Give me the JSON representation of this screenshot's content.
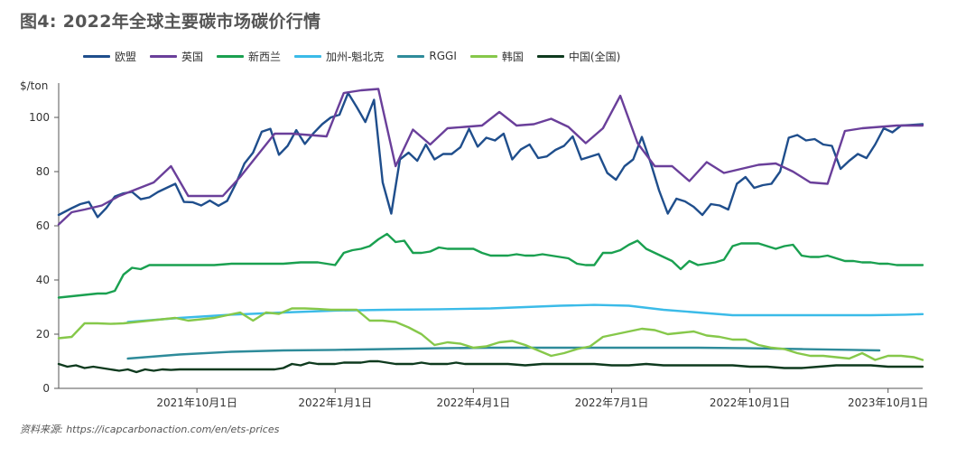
{
  "title": "图4: 2022年全球主要碳市场碳价行情",
  "source": "资料来源: https://icapcarbonaction.com/en/ets-prices",
  "chart_data": {
    "type": "line",
    "title": "图4: 2022年全球主要碳市场碳价行情",
    "ylabel": "$/ton",
    "xlabel": "",
    "ylim": [
      0,
      110
    ],
    "yticks": [
      0,
      20,
      40,
      60,
      80,
      100
    ],
    "xlim": [
      0,
      100
    ],
    "xticks": [
      {
        "pos": 16,
        "label": "2021年10月1日"
      },
      {
        "pos": 32,
        "label": "2022年1月1日"
      },
      {
        "pos": 48,
        "label": "2022年4月1日"
      },
      {
        "pos": 64,
        "label": "2022年7月1日"
      },
      {
        "pos": 80,
        "label": "2022年10月1日"
      },
      {
        "pos": 96,
        "label": "2023年10月1日"
      }
    ],
    "series": [
      {
        "name": "欧盟",
        "color": "#1f4e8c",
        "x": [
          0,
          1.5,
          2.5,
          3.5,
          4.5,
          5.5,
          6.5,
          7.5,
          8.5,
          9.5,
          10.5,
          11.5,
          12.5,
          13.5,
          14.5,
          15.5,
          16.5,
          17.5,
          18.5,
          19.5,
          20.5,
          21.5,
          22.5,
          23.5,
          24.5,
          25.5,
          26.5,
          27.5,
          28.5,
          29.5,
          30.5,
          31.5,
          32.5,
          33.5,
          34.5,
          35.5,
          36.5,
          37.5,
          38.5,
          39.5,
          40.5,
          41.5,
          42.5,
          43.5,
          44.5,
          45.5,
          46.5,
          47.5,
          48.5,
          49.5,
          50.5,
          51.5,
          52.5,
          53.5,
          54.5,
          55.5,
          56.5,
          57.5,
          58.5,
          59.5,
          60.5,
          61.5,
          62.5,
          63.5,
          64.5,
          65.5,
          66.5,
          67.5,
          68.5,
          69.5,
          70.5,
          71.5,
          72.5,
          73.5,
          74.5,
          75.5,
          76.5,
          77.5,
          78.5,
          79.5,
          80.5,
          81.5,
          82.5,
          83.5,
          84.5,
          85.5,
          86.5,
          87.5,
          88.5,
          89.5,
          90.5,
          91.5,
          92.5,
          93.5,
          94.5,
          95.5,
          96.5,
          97.5,
          98.5,
          99.5,
          100
        ],
        "values": [
          64.0,
          66.5,
          68.0,
          68.8,
          63.2,
          66.5,
          70.8,
          72.0,
          72.5,
          69.8,
          70.5,
          72.5,
          74.0,
          75.5,
          68.8,
          68.7,
          67.5,
          69.3,
          67.4,
          69.2,
          75.5,
          83.0,
          87.0,
          94.7,
          95.8,
          86.2,
          89.5,
          95.3,
          90.2,
          94.2,
          97.5,
          100.0,
          101.0,
          109.0,
          103.8,
          98.3,
          106.5,
          76.0,
          64.5,
          84.5,
          87.0,
          84.0,
          90.0,
          84.5,
          86.5,
          86.5,
          89.0,
          95.8,
          89.2,
          92.5,
          91.5,
          94.0,
          84.5,
          88.2,
          90.0,
          85.0,
          85.6,
          88.0,
          89.5,
          93.0,
          84.5,
          85.5,
          86.5,
          79.5,
          77.0,
          82.0,
          84.5,
          92.8,
          83.5,
          73.0,
          64.5,
          70.0,
          69.0,
          67.0,
          64.0,
          68.0,
          67.5,
          66.0,
          75.5,
          78.0,
          74.0,
          75.0,
          75.5,
          80.0,
          92.5,
          93.5,
          91.5,
          92.0,
          90.0,
          89.5,
          81.0,
          84.0,
          86.5,
          85.0,
          90.0,
          96.0,
          94.5,
          97.0,
          97.2,
          97.4,
          97.5
        ]
      },
      {
        "name": "英国",
        "color": "#6a3f9a",
        "x": [
          0,
          1.5,
          3,
          5,
          7,
          9,
          11,
          13,
          15,
          17,
          19,
          21,
          23,
          25,
          27,
          29,
          31,
          33,
          35,
          37,
          39,
          41,
          43,
          45,
          47,
          49,
          51,
          53,
          55,
          57,
          59,
          61,
          63,
          65,
          67,
          69,
          71,
          73,
          75,
          77,
          79,
          81,
          83,
          85,
          87,
          89,
          91,
          93,
          95,
          97,
          99,
          100
        ],
        "values": [
          60.5,
          65.0,
          66.0,
          67.5,
          71.0,
          73.5,
          76.0,
          82.0,
          71.0,
          71.0,
          71.0,
          78.0,
          86.0,
          94.0,
          94.0,
          93.5,
          93.0,
          109.0,
          110.0,
          110.5,
          82.0,
          95.5,
          90.0,
          96.0,
          96.5,
          97.0,
          102.0,
          97.0,
          97.5,
          99.5,
          96.5,
          90.5,
          96.0,
          108.0,
          90.5,
          82.0,
          82.0,
          76.5,
          83.5,
          79.5,
          81.0,
          82.5,
          83.0,
          80.0,
          76.0,
          75.5,
          95.0,
          96.0,
          96.5,
          97.0,
          97.0,
          97.0
        ]
      },
      {
        "name": "新西兰",
        "color": "#1aa050",
        "x": [
          0,
          1.5,
          3,
          4.5,
          5.5,
          6.5,
          7.5,
          8.5,
          9.5,
          10.5,
          11.5,
          12.5,
          14,
          16,
          18,
          20,
          22,
          24,
          26,
          28,
          30,
          31,
          32,
          33,
          34,
          35,
          36,
          37,
          38,
          39,
          40,
          41,
          42,
          43,
          44,
          45,
          46,
          47,
          48,
          49,
          50,
          51,
          52,
          53,
          54,
          55,
          56,
          57,
          58,
          59,
          60,
          61,
          62,
          63,
          64,
          65,
          66,
          67,
          68,
          69,
          70,
          71,
          72,
          73,
          74,
          75,
          76,
          77,
          78,
          79,
          80,
          81,
          82,
          83,
          84,
          85,
          86,
          87,
          88,
          89,
          90,
          91,
          92,
          93,
          94,
          95,
          96,
          97,
          98,
          99,
          100
        ],
        "values": [
          33.5,
          34.0,
          34.5,
          35.0,
          35.0,
          36.0,
          42.0,
          44.5,
          44.0,
          45.5,
          45.5,
          45.5,
          45.5,
          45.5,
          45.5,
          46.0,
          46.0,
          46.0,
          46.0,
          46.5,
          46.5,
          46.0,
          45.5,
          50.0,
          51.0,
          51.5,
          52.5,
          55.0,
          57.0,
          54.0,
          54.5,
          50.0,
          50.0,
          50.5,
          52.0,
          51.5,
          51.5,
          51.5,
          51.5,
          50.0,
          49.0,
          49.0,
          49.0,
          49.5,
          49.0,
          49.0,
          49.5,
          49.0,
          48.5,
          48.0,
          46.0,
          45.5,
          45.5,
          50.0,
          50.0,
          51.0,
          53.0,
          54.5,
          51.5,
          50.0,
          48.5,
          47.0,
          44.0,
          47.0,
          45.5,
          46.0,
          46.5,
          47.5,
          52.5,
          53.5,
          53.5,
          53.5,
          52.5,
          51.5,
          52.5,
          53.0,
          49.0,
          48.5,
          48.5,
          49.0,
          48.0,
          47.0,
          47.0,
          46.5,
          46.5,
          46.0,
          46.0,
          45.5,
          45.5,
          45.5,
          45.5
        ]
      },
      {
        "name": "加州-魁北克",
        "color": "#3bbbe8",
        "x": [
          8,
          14,
          20,
          26,
          32,
          38,
          44,
          50,
          54,
          58,
          62,
          66,
          70,
          74,
          78,
          82,
          86,
          90,
          94,
          98,
          100
        ],
        "values": [
          24.5,
          26.0,
          27.2,
          28.0,
          28.7,
          29.0,
          29.2,
          29.5,
          30.0,
          30.5,
          30.8,
          30.5,
          29.0,
          28.0,
          27.0,
          27.0,
          27.0,
          27.0,
          27.0,
          27.2,
          27.4
        ]
      },
      {
        "name": "RGGI",
        "color": "#2e8b9a",
        "x": [
          8,
          14,
          20,
          26,
          32,
          38,
          44,
          50,
          56,
          62,
          68,
          74,
          80,
          86,
          92,
          95
        ],
        "values": [
          11.0,
          12.5,
          13.5,
          14.0,
          14.2,
          14.5,
          14.8,
          15.0,
          15.0,
          15.0,
          15.0,
          15.0,
          14.8,
          14.5,
          14.2,
          14.0
        ]
      },
      {
        "name": "韩国",
        "color": "#86c84a",
        "x": [
          0,
          1.5,
          3,
          4.5,
          6,
          7.5,
          9,
          10.5,
          12,
          13.5,
          15,
          16.5,
          18,
          19.5,
          21,
          22.5,
          24,
          25.5,
          27,
          28.5,
          30,
          31.5,
          33,
          34.5,
          36,
          37.5,
          39,
          40.5,
          42,
          43.5,
          45,
          46.5,
          48,
          49.5,
          51,
          52.5,
          54,
          55.5,
          57,
          58.5,
          60,
          61.5,
          63,
          64.5,
          66,
          67.5,
          69,
          70.5,
          72,
          73.5,
          75,
          76.5,
          78,
          79.5,
          81,
          82.5,
          84,
          85.5,
          87,
          88.5,
          90,
          91.5,
          93,
          94.5,
          96,
          97.5,
          99,
          100
        ],
        "values": [
          18.5,
          19.0,
          24.0,
          24.0,
          23.8,
          24.0,
          24.5,
          25.0,
          25.5,
          26.0,
          25.0,
          25.5,
          26.0,
          27.0,
          28.0,
          25.0,
          28.0,
          27.5,
          29.5,
          29.5,
          29.3,
          29.0,
          29.0,
          29.0,
          25.0,
          25.0,
          24.5,
          22.5,
          20.0,
          16.0,
          17.0,
          16.5,
          15.0,
          15.5,
          17.0,
          17.5,
          16.0,
          14.0,
          12.0,
          13.0,
          14.5,
          15.5,
          19.0,
          20.0,
          21.0,
          22.0,
          21.5,
          20.0,
          20.5,
          21.0,
          19.5,
          19.0,
          18.0,
          18.0,
          16.0,
          15.0,
          14.5,
          13.0,
          12.0,
          12.0,
          11.5,
          11.0,
          13.0,
          10.5,
          12.0,
          12.0,
          11.5,
          10.5
        ]
      },
      {
        "name": "中国(全国)",
        "color": "#0e3a1e",
        "x": [
          0,
          1,
          2,
          3,
          4,
          5,
          6,
          7,
          8,
          9,
          10,
          11,
          12,
          13,
          14,
          15,
          16,
          17,
          18,
          19,
          20,
          21,
          22,
          23,
          24,
          25,
          26,
          27,
          28,
          29,
          30,
          31,
          32,
          33,
          34,
          35,
          36,
          37,
          38,
          39,
          40,
          41,
          42,
          43,
          44,
          45,
          46,
          47,
          48,
          49,
          50,
          52,
          54,
          56,
          58,
          60,
          62,
          64,
          66,
          68,
          70,
          72,
          74,
          76,
          78,
          80,
          82,
          84,
          86,
          88,
          90,
          92,
          94,
          96,
          98,
          100
        ],
        "values": [
          9.0,
          8.0,
          8.5,
          7.5,
          8.0,
          7.5,
          7.0,
          6.5,
          7.0,
          6.0,
          7.0,
          6.5,
          7.0,
          6.8,
          7.0,
          7.0,
          7.0,
          7.0,
          7.0,
          7.0,
          7.0,
          7.0,
          7.0,
          7.0,
          7.0,
          7.0,
          7.5,
          9.0,
          8.5,
          9.5,
          9.0,
          9.0,
          9.0,
          9.5,
          9.5,
          9.5,
          10.0,
          10.0,
          9.5,
          9.0,
          9.0,
          9.0,
          9.5,
          9.0,
          9.0,
          9.0,
          9.5,
          9.0,
          9.0,
          9.0,
          9.0,
          9.0,
          8.5,
          9.0,
          9.0,
          9.0,
          9.0,
          8.5,
          8.5,
          9.0,
          8.5,
          8.5,
          8.5,
          8.5,
          8.5,
          8.0,
          8.0,
          7.5,
          7.5,
          8.0,
          8.5,
          8.5,
          8.5,
          8.0,
          8.0,
          8.0
        ]
      }
    ],
    "legend": "top-left"
  }
}
